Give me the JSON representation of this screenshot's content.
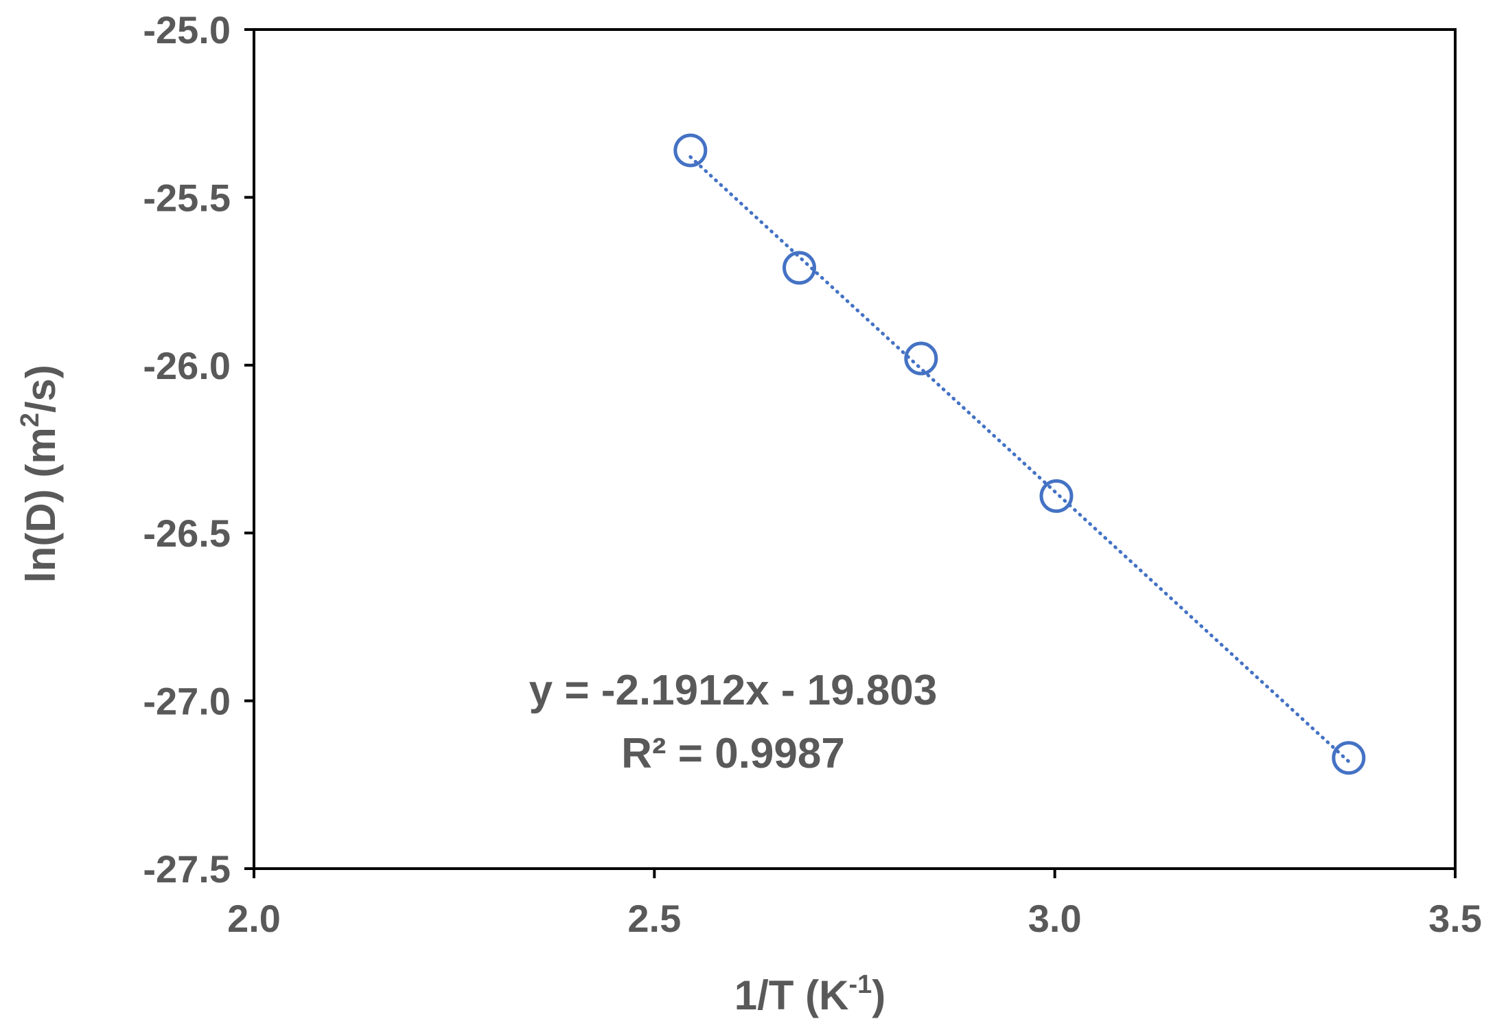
{
  "chart_data": {
    "type": "scatter",
    "xlabel": "1/T (K-1)",
    "ylabel": "ln(D) (m2/s)",
    "xlim": [
      2.0,
      3.5
    ],
    "ylim": [
      -27.5,
      -25.0
    ],
    "x_ticks": [
      "2.0",
      "2.5",
      "3.0",
      "3.5"
    ],
    "y_ticks": [
      "-25.0",
      "-25.5",
      "-26.0",
      "-26.5",
      "-27.0",
      "-27.5"
    ],
    "grid": false,
    "legend": "none",
    "series": [
      {
        "x": [
          2.545,
          2.681,
          2.833,
          3.002,
          3.367
        ],
        "y": [
          -25.36,
          -25.71,
          -25.98,
          -26.39,
          -27.17
        ],
        "marker": "open-circle",
        "color": "#4472C4"
      }
    ],
    "trendline": {
      "type": "linear",
      "style": "dotted",
      "color": "#4472C4",
      "slope": -2.1912,
      "intercept": -19.803,
      "x_range": [
        2.545,
        3.367
      ]
    },
    "annotations": {
      "equation": "y = -2.1912x - 19.803",
      "r_squared": "R² = 0.9987"
    }
  }
}
